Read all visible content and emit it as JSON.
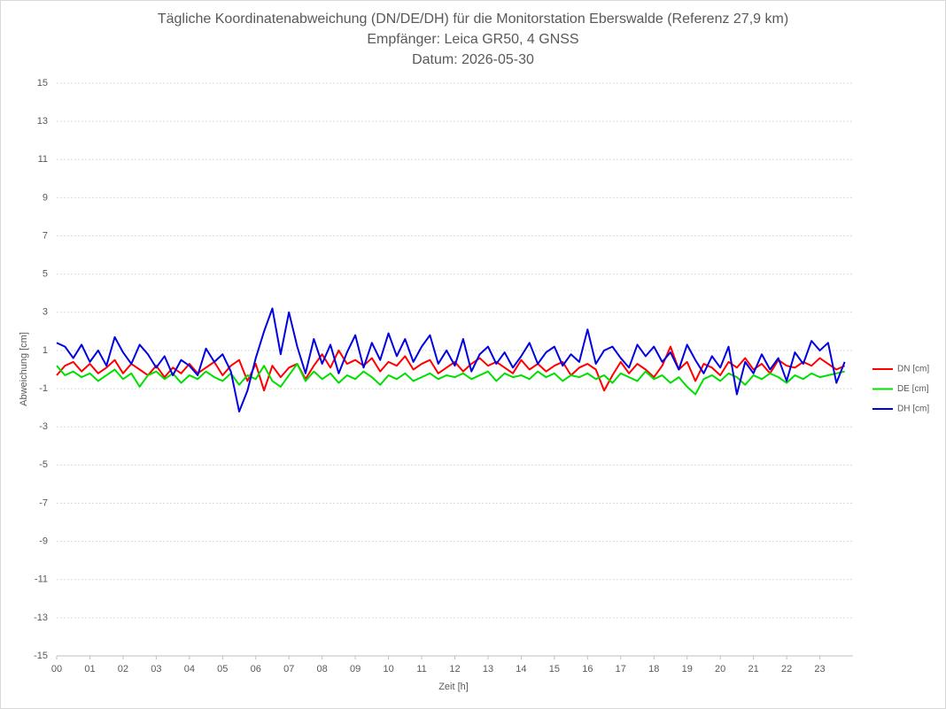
{
  "chart_data": {
    "type": "line",
    "title": "Tägliche Koordinatenabweichung (DN/DE/DH) für die Monitorstation Eberswalde (Referenz 27,9 km)",
    "subtitle": [
      "Empfänger: Leica GR50, 4 GNSS",
      "Datum: 2026-05-30"
    ],
    "xlabel": "Zeit [h]",
    "ylabel": "Abweichung [cm]",
    "xlim": [
      0,
      24
    ],
    "ylim": [
      -15,
      15
    ],
    "xticks": [
      {
        "value": 0,
        "label": "00"
      },
      {
        "value": 1,
        "label": "01"
      },
      {
        "value": 2,
        "label": "02"
      },
      {
        "value": 3,
        "label": "03"
      },
      {
        "value": 4,
        "label": "04"
      },
      {
        "value": 5,
        "label": "05"
      },
      {
        "value": 6,
        "label": "06"
      },
      {
        "value": 7,
        "label": "07"
      },
      {
        "value": 8,
        "label": "08"
      },
      {
        "value": 9,
        "label": "09"
      },
      10,
      11,
      12,
      13,
      14,
      15,
      16,
      17,
      18,
      19,
      20,
      21,
      22,
      23
    ],
    "yticks": [
      -15,
      -13,
      -11,
      -9,
      -7,
      -5,
      -3,
      -1,
      1,
      3,
      5,
      7,
      9,
      11,
      13,
      15
    ],
    "grid": true,
    "legend": "right",
    "x": [
      0,
      0.25,
      0.5,
      0.75,
      1,
      1.25,
      1.5,
      1.75,
      2,
      2.25,
      2.5,
      2.75,
      3,
      3.25,
      3.5,
      3.75,
      4,
      4.25,
      4.5,
      4.75,
      5,
      5.25,
      5.5,
      5.75,
      6,
      6.25,
      6.5,
      6.75,
      7,
      7.25,
      7.5,
      7.75,
      8,
      8.25,
      8.5,
      8.75,
      9,
      9.25,
      9.5,
      9.75,
      10,
      10.25,
      10.5,
      10.75,
      11,
      11.25,
      11.5,
      11.75,
      12,
      12.25,
      12.5,
      12.75,
      13,
      13.25,
      13.5,
      13.75,
      14,
      14.25,
      14.5,
      14.75,
      15,
      15.25,
      15.5,
      15.75,
      16,
      16.25,
      16.5,
      16.75,
      17,
      17.25,
      17.5,
      17.75,
      18,
      18.25,
      18.5,
      18.75,
      19,
      19.25,
      19.5,
      19.75,
      20,
      20.25,
      20.5,
      20.75,
      21,
      21.25,
      21.5,
      21.75,
      22,
      22.25,
      22.5,
      22.75,
      23,
      23.25,
      23.5,
      23.75
    ],
    "series": [
      {
        "name": "DN [cm]",
        "color": "#ff0000",
        "values": [
          -0.3,
          0.2,
          0.4,
          -0.1,
          0.3,
          -0.2,
          0.1,
          0.5,
          -0.2,
          0.3,
          0.0,
          -0.3,
          0.2,
          -0.4,
          0.1,
          -0.2,
          0.3,
          -0.2,
          0.1,
          0.4,
          -0.3,
          0.2,
          0.5,
          -0.6,
          0.3,
          -1.1,
          0.2,
          -0.4,
          0.1,
          0.3,
          -0.5,
          0.2,
          0.8,
          0.1,
          1.0,
          0.3,
          0.5,
          0.2,
          0.6,
          -0.1,
          0.4,
          0.2,
          0.7,
          0.0,
          0.3,
          0.5,
          -0.2,
          0.1,
          0.4,
          -0.1,
          0.3,
          0.6,
          0.2,
          0.4,
          0.1,
          -0.2,
          0.5,
          0.0,
          0.3,
          -0.1,
          0.2,
          0.4,
          -0.3,
          0.1,
          0.3,
          0.0,
          -1.1,
          -0.3,
          0.4,
          -0.2,
          0.3,
          0.0,
          -0.4,
          0.2,
          1.2,
          0.0,
          0.4,
          -0.6,
          0.3,
          0.1,
          -0.3,
          0.4,
          0.1,
          0.6,
          0.0,
          0.3,
          -0.2,
          0.5,
          0.2,
          0.1,
          0.4,
          0.2,
          0.6,
          0.3,
          0.0,
          0.2
        ]
      },
      {
        "name": "DE [cm]",
        "color": "#00e000",
        "values": [
          0.2,
          -0.3,
          -0.1,
          -0.4,
          -0.2,
          -0.6,
          -0.3,
          0.0,
          -0.5,
          -0.2,
          -0.9,
          -0.3,
          -0.1,
          -0.5,
          -0.2,
          -0.7,
          -0.3,
          -0.5,
          -0.1,
          -0.4,
          -0.6,
          -0.2,
          -0.8,
          -0.3,
          -0.5,
          0.2,
          -0.6,
          -0.9,
          -0.3,
          0.3,
          -0.6,
          -0.1,
          -0.5,
          -0.2,
          -0.7,
          -0.3,
          -0.5,
          -0.1,
          -0.4,
          -0.8,
          -0.3,
          -0.5,
          -0.2,
          -0.6,
          -0.4,
          -0.2,
          -0.5,
          -0.3,
          -0.4,
          -0.2,
          -0.5,
          -0.3,
          -0.1,
          -0.6,
          -0.2,
          -0.4,
          -0.3,
          -0.5,
          -0.1,
          -0.4,
          -0.2,
          -0.6,
          -0.3,
          -0.4,
          -0.2,
          -0.5,
          -0.3,
          -0.7,
          -0.2,
          -0.4,
          -0.6,
          -0.1,
          -0.5,
          -0.3,
          -0.7,
          -0.4,
          -0.9,
          -1.3,
          -0.5,
          -0.3,
          -0.6,
          -0.2,
          -0.4,
          -0.8,
          -0.3,
          -0.5,
          -0.2,
          -0.4,
          -0.7,
          -0.3,
          -0.5,
          -0.2,
          -0.4,
          -0.3,
          -0.2,
          -0.1
        ]
      },
      {
        "name": "DH [cm]",
        "color": "#0000e0",
        "values": [
          1.4,
          1.2,
          0.6,
          1.3,
          0.4,
          1.0,
          0.2,
          1.7,
          0.9,
          0.3,
          1.3,
          0.8,
          0.1,
          0.7,
          -0.3,
          0.5,
          0.2,
          -0.3,
          1.1,
          0.4,
          0.8,
          -0.1,
          -2.2,
          -1.1,
          0.6,
          2.0,
          3.2,
          0.8,
          3.0,
          1.2,
          -0.2,
          1.6,
          0.3,
          1.3,
          -0.2,
          0.9,
          1.8,
          0.1,
          1.4,
          0.5,
          1.9,
          0.7,
          1.6,
          0.4,
          1.2,
          1.8,
          0.3,
          1.0,
          0.2,
          1.6,
          -0.1,
          0.8,
          1.2,
          0.3,
          0.9,
          0.1,
          0.7,
          1.4,
          0.3,
          0.9,
          1.2,
          0.2,
          0.8,
          0.4,
          2.1,
          0.3,
          1.0,
          1.2,
          0.6,
          0.1,
          1.3,
          0.7,
          1.2,
          0.4,
          0.9,
          0.0,
          1.3,
          0.5,
          -0.2,
          0.7,
          0.1,
          1.2,
          -1.3,
          0.4,
          -0.2,
          0.8,
          0.0,
          0.6,
          -0.6,
          0.9,
          0.3,
          1.5,
          1.0,
          1.4,
          -0.7,
          0.4
        ]
      }
    ]
  }
}
